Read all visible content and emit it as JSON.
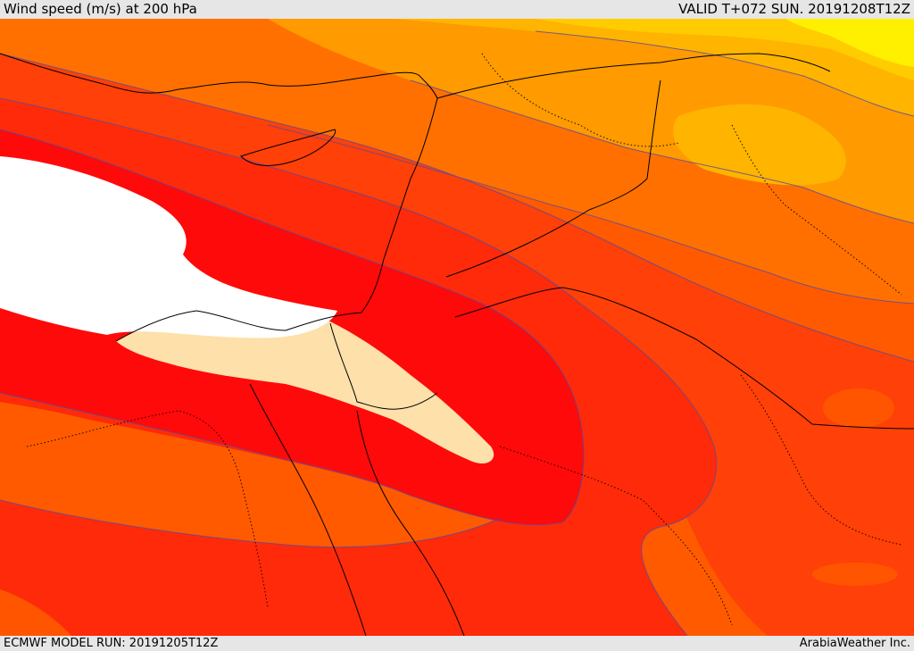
{
  "header": {
    "title": "Wind speed (m/s) at 200 hPa",
    "valid": "VALID T+072 SUN. 20191208T12Z"
  },
  "footer": {
    "model_run": "ECMWF MODEL RUN: 20191205T12Z",
    "credit": "ArabiaWeather Inc."
  },
  "colors": {
    "very_light": "#fde0aa",
    "red_deep": "#ff0a0a",
    "red": "#ff2a0a",
    "red_orange": "#ff4008",
    "orange_dark": "#ff5500",
    "orange": "#ff7000",
    "orange_light": "#ff9a00",
    "amber": "#ffb400",
    "gold": "#ffcc00",
    "yellow": "#fff000",
    "contour": "#5a4aa0",
    "coast": "#000000"
  }
}
